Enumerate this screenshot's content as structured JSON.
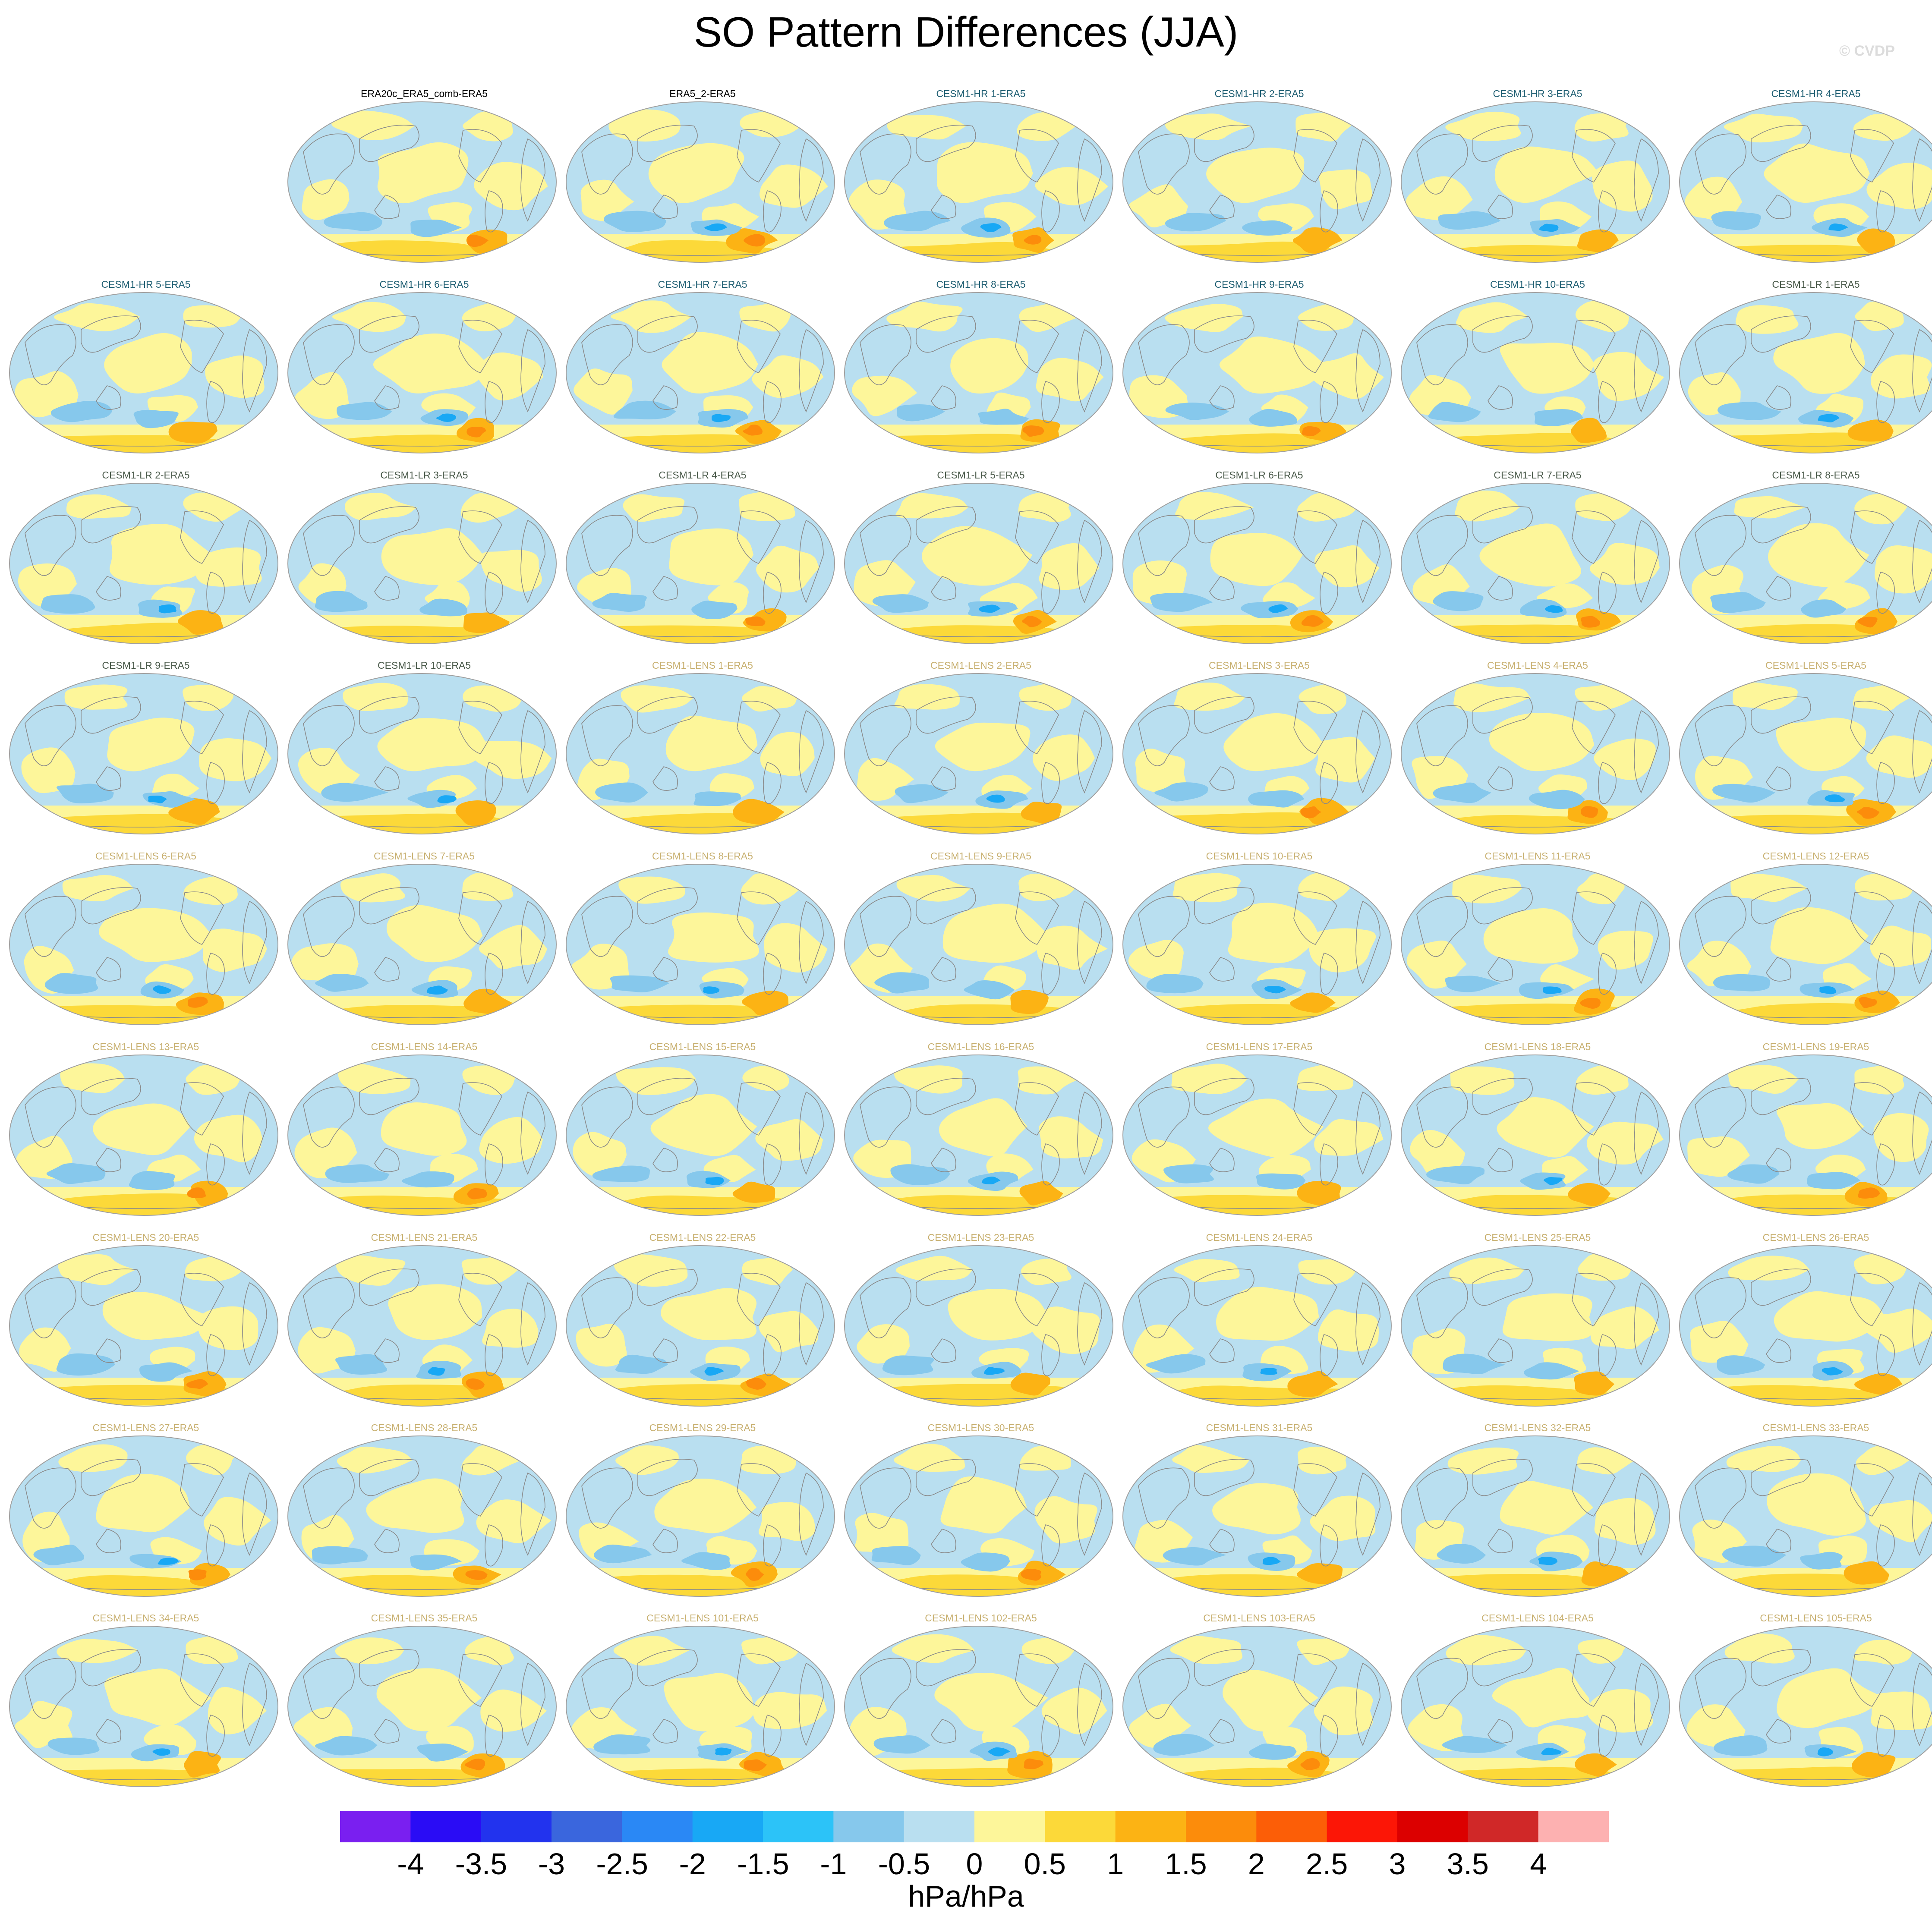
{
  "header": {
    "title": "SO Pattern Differences (JJA)",
    "credit": "© CVDP"
  },
  "label_colors": {
    "obs": "#000000",
    "hr": "#1f5f73",
    "lr": "#4a5a4a",
    "lens": "#c8b070"
  },
  "panels": [
    [
      null,
      {
        "label": "ERA20c_ERA5_comb-ERA5",
        "group": "obs"
      },
      {
        "label": "ERA5_2-ERA5",
        "group": "obs"
      },
      {
        "label": "CESM1-HR 1-ERA5",
        "group": "hr"
      },
      {
        "label": "CESM1-HR 2-ERA5",
        "group": "hr"
      },
      {
        "label": "CESM1-HR 3-ERA5",
        "group": "hr"
      },
      {
        "label": "CESM1-HR 4-ERA5",
        "group": "hr"
      }
    ],
    [
      {
        "label": "CESM1-HR 5-ERA5",
        "group": "hr"
      },
      {
        "label": "CESM1-HR 6-ERA5",
        "group": "hr"
      },
      {
        "label": "CESM1-HR 7-ERA5",
        "group": "hr"
      },
      {
        "label": "CESM1-HR 8-ERA5",
        "group": "hr"
      },
      {
        "label": "CESM1-HR 9-ERA5",
        "group": "hr"
      },
      {
        "label": "CESM1-HR 10-ERA5",
        "group": "hr"
      },
      {
        "label": "CESM1-LR 1-ERA5",
        "group": "lr"
      }
    ],
    [
      {
        "label": "CESM1-LR 2-ERA5",
        "group": "lr"
      },
      {
        "label": "CESM1-LR 3-ERA5",
        "group": "lr"
      },
      {
        "label": "CESM1-LR 4-ERA5",
        "group": "lr"
      },
      {
        "label": "CESM1-LR 5-ERA5",
        "group": "lr"
      },
      {
        "label": "CESM1-LR 6-ERA5",
        "group": "lr"
      },
      {
        "label": "CESM1-LR 7-ERA5",
        "group": "lr"
      },
      {
        "label": "CESM1-LR 8-ERA5",
        "group": "lr"
      }
    ],
    [
      {
        "label": "CESM1-LR 9-ERA5",
        "group": "lr"
      },
      {
        "label": "CESM1-LR 10-ERA5",
        "group": "lr"
      },
      {
        "label": "CESM1-LENS 1-ERA5",
        "group": "lens"
      },
      {
        "label": "CESM1-LENS 2-ERA5",
        "group": "lens"
      },
      {
        "label": "CESM1-LENS 3-ERA5",
        "group": "lens"
      },
      {
        "label": "CESM1-LENS 4-ERA5",
        "group": "lens"
      },
      {
        "label": "CESM1-LENS 5-ERA5",
        "group": "lens"
      }
    ],
    [
      {
        "label": "CESM1-LENS 6-ERA5",
        "group": "lens"
      },
      {
        "label": "CESM1-LENS 7-ERA5",
        "group": "lens"
      },
      {
        "label": "CESM1-LENS 8-ERA5",
        "group": "lens"
      },
      {
        "label": "CESM1-LENS 9-ERA5",
        "group": "lens"
      },
      {
        "label": "CESM1-LENS 10-ERA5",
        "group": "lens"
      },
      {
        "label": "CESM1-LENS 11-ERA5",
        "group": "lens"
      },
      {
        "label": "CESM1-LENS 12-ERA5",
        "group": "lens"
      }
    ],
    [
      {
        "label": "CESM1-LENS 13-ERA5",
        "group": "lens"
      },
      {
        "label": "CESM1-LENS 14-ERA5",
        "group": "lens"
      },
      {
        "label": "CESM1-LENS 15-ERA5",
        "group": "lens"
      },
      {
        "label": "CESM1-LENS 16-ERA5",
        "group": "lens"
      },
      {
        "label": "CESM1-LENS 17-ERA5",
        "group": "lens"
      },
      {
        "label": "CESM1-LENS 18-ERA5",
        "group": "lens"
      },
      {
        "label": "CESM1-LENS 19-ERA5",
        "group": "lens"
      }
    ],
    [
      {
        "label": "CESM1-LENS 20-ERA5",
        "group": "lens"
      },
      {
        "label": "CESM1-LENS 21-ERA5",
        "group": "lens"
      },
      {
        "label": "CESM1-LENS 22-ERA5",
        "group": "lens"
      },
      {
        "label": "CESM1-LENS 23-ERA5",
        "group": "lens"
      },
      {
        "label": "CESM1-LENS 24-ERA5",
        "group": "lens"
      },
      {
        "label": "CESM1-LENS 25-ERA5",
        "group": "lens"
      },
      {
        "label": "CESM1-LENS 26-ERA5",
        "group": "lens"
      }
    ],
    [
      {
        "label": "CESM1-LENS 27-ERA5",
        "group": "lens"
      },
      {
        "label": "CESM1-LENS 28-ERA5",
        "group": "lens"
      },
      {
        "label": "CESM1-LENS 29-ERA5",
        "group": "lens"
      },
      {
        "label": "CESM1-LENS 30-ERA5",
        "group": "lens"
      },
      {
        "label": "CESM1-LENS 31-ERA5",
        "group": "lens"
      },
      {
        "label": "CESM1-LENS 32-ERA5",
        "group": "lens"
      },
      {
        "label": "CESM1-LENS 33-ERA5",
        "group": "lens"
      }
    ],
    [
      {
        "label": "CESM1-LENS 34-ERA5",
        "group": "lens"
      },
      {
        "label": "CESM1-LENS 35-ERA5",
        "group": "lens"
      },
      {
        "label": "CESM1-LENS 101-ERA5",
        "group": "lens"
      },
      {
        "label": "CESM1-LENS 102-ERA5",
        "group": "lens"
      },
      {
        "label": "CESM1-LENS 103-ERA5",
        "group": "lens"
      },
      {
        "label": "CESM1-LENS 104-ERA5",
        "group": "lens"
      },
      {
        "label": "CESM1-LENS 105-ERA5",
        "group": "lens"
      }
    ]
  ],
  "colorbar": {
    "units": "hPa/hPa",
    "ticks": [
      "-4",
      "-3.5",
      "-3",
      "-2.5",
      "-2",
      "-1.5",
      "-1",
      "-0.5",
      "0",
      "0.5",
      "1",
      "1.5",
      "2",
      "2.5",
      "3",
      "3.5",
      "4"
    ],
    "colors": [
      "#7a1ff0",
      "#2a0cf5",
      "#2233ee",
      "#3a66dd",
      "#2a88f5",
      "#18a8f5",
      "#2cc3f8",
      "#86c8ec",
      "#b9dff0",
      "#fdf69a",
      "#fcd939",
      "#fcb314",
      "#fc8c0b",
      "#fc5e07",
      "#fc1606",
      "#dc0000",
      "#d02828",
      "#fdb1b1"
    ]
  },
  "map_fill": {
    "land_outline": "#8a8a8a",
    "border": "#a0a0a0"
  }
}
